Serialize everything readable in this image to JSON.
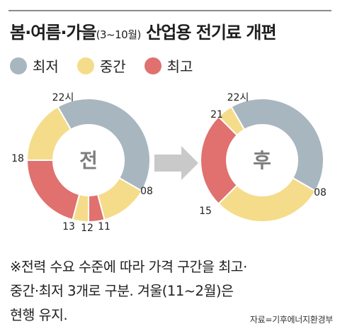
{
  "header": {
    "title_main": "봄·여름·가을",
    "title_sub": "(3~10월)",
    "title_rest": " 산업용 전기료 개편"
  },
  "legend": [
    {
      "label": "최저",
      "color": "#a8b6c0"
    },
    {
      "label": "중간",
      "color": "#f5dc8a"
    },
    {
      "label": "최고",
      "color": "#e0716e"
    }
  ],
  "arrow_color": "#c9c9c9",
  "chart_data": [
    {
      "type": "donut",
      "center_label": "전",
      "tick_labels": [
        "22시",
        "08",
        "11",
        "12",
        "13",
        "18"
      ],
      "segments": [
        {
          "from": 22,
          "to": 8,
          "level": "최저"
        },
        {
          "from": 8,
          "to": 11,
          "level": "중간"
        },
        {
          "from": 11,
          "to": 12,
          "level": "최고"
        },
        {
          "from": 12,
          "to": 13,
          "level": "중간"
        },
        {
          "from": 13,
          "to": 18,
          "level": "최고"
        },
        {
          "from": 18,
          "to": 22,
          "level": "중간"
        }
      ]
    },
    {
      "type": "donut",
      "center_label": "후",
      "tick_labels": [
        "22시",
        "08",
        "15",
        "21"
      ],
      "segments": [
        {
          "from": 22,
          "to": 8,
          "level": "최저"
        },
        {
          "from": 8,
          "to": 15,
          "level": "중간"
        },
        {
          "from": 15,
          "to": 21,
          "level": "최고"
        },
        {
          "from": 21,
          "to": 22,
          "level": "중간"
        }
      ]
    }
  ],
  "note_lines": [
    "※전력 수요 수준에 따라 가격 구간을 최고·",
    "중간·최저 3개로 구분. 겨울(11~2월)은",
    "현행 유지."
  ],
  "source": "자료=기후에너지환경부"
}
